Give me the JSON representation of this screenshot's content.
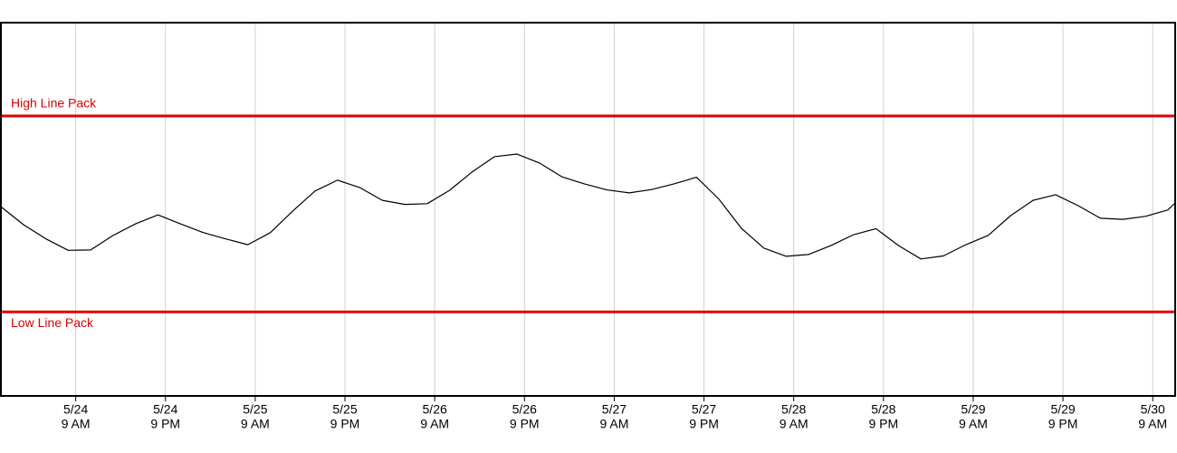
{
  "chart_data": {
    "type": "line",
    "x": [
      "5/23 11 PM",
      "5/24 2 AM",
      "5/24 5 AM",
      "5/24 8 AM",
      "5/24 11 AM",
      "5/24 2 PM",
      "5/24 5 PM",
      "5/24 8 PM",
      "5/24 11 PM",
      "5/25 2 AM",
      "5/25 5 AM",
      "5/25 8 AM",
      "5/25 11 AM",
      "5/25 2 PM",
      "5/25 5 PM",
      "5/25 8 PM",
      "5/25 11 PM",
      "5/26 2 AM",
      "5/26 5 AM",
      "5/26 8 AM",
      "5/26 11 AM",
      "5/26 2 PM",
      "5/26 5 PM",
      "5/26 8 PM",
      "5/26 11 PM",
      "5/27 2 AM",
      "5/27 5 AM",
      "5/27 8 AM",
      "5/27 11 AM",
      "5/27 2 PM",
      "5/27 5 PM",
      "5/27 8 PM",
      "5/27 11 PM",
      "5/28 2 AM",
      "5/28 5 AM",
      "5/28 8 AM",
      "5/28 11 AM",
      "5/28 2 PM",
      "5/28 5 PM",
      "5/28 8 PM",
      "5/28 11 PM",
      "5/29 2 AM",
      "5/29 5 AM",
      "5/29 8 AM",
      "5/29 11 AM",
      "5/29 2 PM",
      "5/29 5 PM",
      "5/29 8 PM",
      "5/29 11 PM",
      "5/30 2 AM",
      "5/30 5 AM",
      "5/30 8 AM",
      "5/30 11 AM",
      "5/30 12 PM"
    ],
    "series": [
      {
        "color": "#000000",
        "values": [
          50.7,
          45.9,
          42.1,
          39.0,
          39.1,
          43.0,
          46.1,
          48.5,
          46.1,
          43.8,
          42.1,
          40.5,
          43.7,
          49.5,
          54.9,
          57.8,
          55.8,
          52.4,
          51.3,
          51.5,
          55.1,
          60.0,
          64.1,
          64.8,
          62.4,
          58.7,
          56.8,
          55.2,
          54.4,
          55.3,
          56.8,
          58.6,
          52.7,
          44.9,
          39.6,
          37.4,
          37.9,
          40.3,
          43.2,
          44.8,
          40.3,
          36.7,
          37.5,
          40.5,
          43.0,
          48.3,
          52.4,
          53.9,
          51.0,
          47.6,
          47.3,
          48.1,
          49.8,
          51.7
        ]
      }
    ],
    "xlim": [
      "5/23 11 PM",
      "5/30 12 PM"
    ],
    "xticks": [
      {
        "value": "5/24 9 AM",
        "label": [
          "5/24",
          "9 AM"
        ]
      },
      {
        "value": "5/24 9 PM",
        "label": [
          "5/24",
          "9 PM"
        ]
      },
      {
        "value": "5/25 9 AM",
        "label": [
          "5/25",
          "9 AM"
        ]
      },
      {
        "value": "5/25 9 PM",
        "label": [
          "5/25",
          "9 PM"
        ]
      },
      {
        "value": "5/26 9 AM",
        "label": [
          "5/26",
          "9 AM"
        ]
      },
      {
        "value": "5/26 9 PM",
        "label": [
          "5/26",
          "9 PM"
        ]
      },
      {
        "value": "5/27 9 AM",
        "label": [
          "5/27",
          "9 AM"
        ]
      },
      {
        "value": "5/27 9 PM",
        "label": [
          "5/27",
          "9 PM"
        ]
      },
      {
        "value": "5/28 9 AM",
        "label": [
          "5/28",
          "9 AM"
        ]
      },
      {
        "value": "5/28 9 PM",
        "label": [
          "5/28",
          "9 PM"
        ]
      },
      {
        "value": "5/29 9 AM",
        "label": [
          "5/29",
          "9 AM"
        ]
      },
      {
        "value": "5/29 9 PM",
        "label": [
          "5/29",
          "9 PM"
        ]
      },
      {
        "value": "5/30 9 AM",
        "label": [
          "5/30",
          "9 AM"
        ]
      }
    ],
    "ylim": [
      0,
      100
    ],
    "grid": true,
    "reference_lines": [
      {
        "label": "High Line Pack",
        "value": 75,
        "color": "#e00000"
      },
      {
        "label": "Low Line Pack",
        "value": 22.5,
        "color": "#e00000"
      }
    ]
  }
}
